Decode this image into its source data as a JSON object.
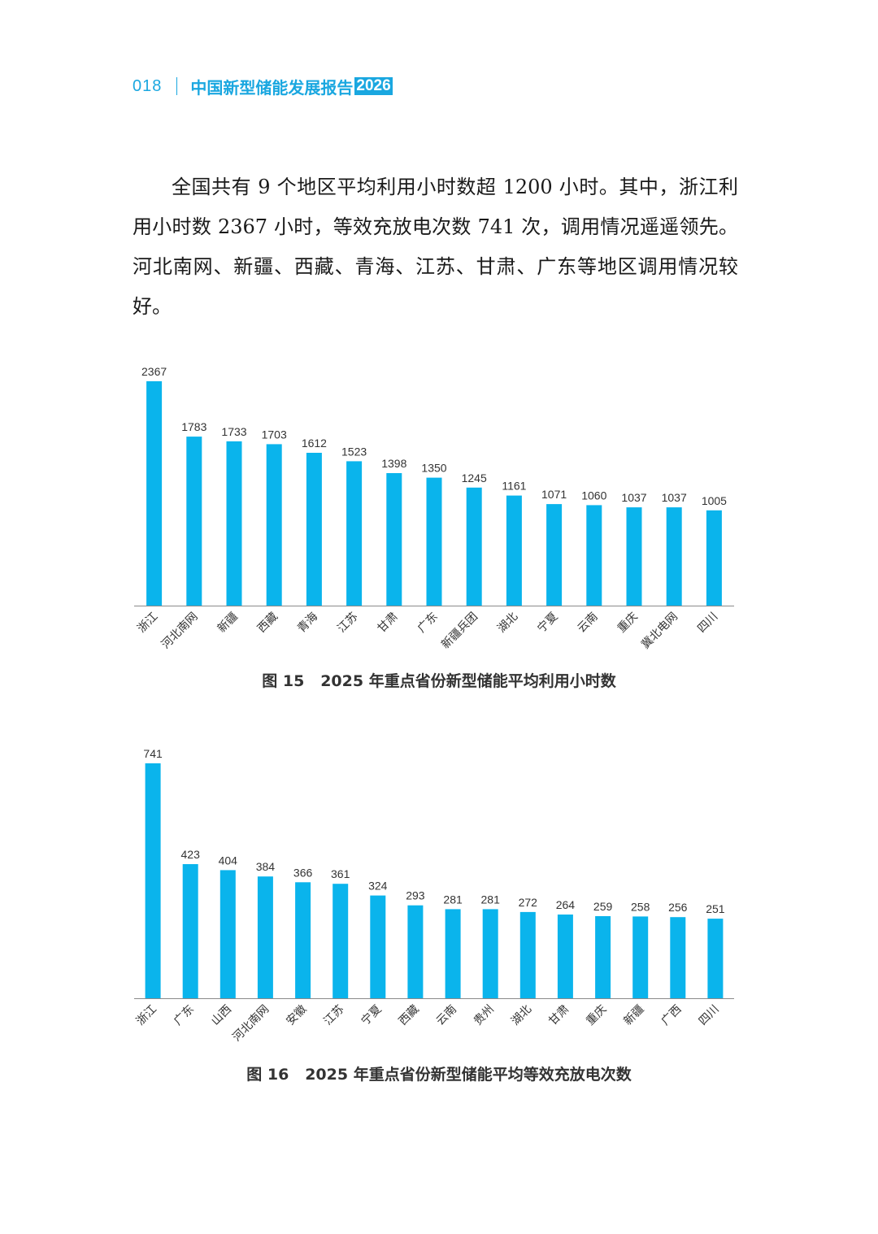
{
  "header": {
    "page_number": "018",
    "title": "中国新型储能发展报告",
    "year": "2026"
  },
  "body_text": "全国共有 9 个地区平均利用小时数超 1200 小时。其中，浙江利用小时数 2367 小时，等效充放电次数 741 次，调用情况遥遥领先。河北南网、新疆、西藏、青海、江苏、甘肃、广东等地区调用情况较好。",
  "figure15": {
    "label": "图 15",
    "caption": "2025 年重点省份新型储能平均利用小时数"
  },
  "figure16": {
    "label": "图 16",
    "caption": "2025 年重点省份新型储能平均等效充放电次数"
  },
  "colors": {
    "accent": "#1aa7e0",
    "bar": "#0ab4ec"
  },
  "chart_data": [
    {
      "type": "bar",
      "categories": [
        "浙江",
        "河北南网",
        "新疆",
        "西藏",
        "青海",
        "江苏",
        "甘肃",
        "广东",
        "新疆兵团",
        "湖北",
        "宁夏",
        "云南",
        "重庆",
        "冀北电网",
        "四川"
      ],
      "values": [
        2367,
        1783,
        1733,
        1703,
        1612,
        1523,
        1398,
        1350,
        1245,
        1161,
        1071,
        1060,
        1037,
        1037,
        1005
      ],
      "ylim": [
        0,
        2367
      ],
      "grid": false
    },
    {
      "type": "bar",
      "categories": [
        "浙江",
        "广东",
        "山西",
        "河北南网",
        "安徽",
        "江苏",
        "宁夏",
        "西藏",
        "云南",
        "贵州",
        "湖北",
        "甘肃",
        "重庆",
        "新疆",
        "广西",
        "四川"
      ],
      "values": [
        741,
        423,
        404,
        384,
        366,
        361,
        324,
        293,
        281,
        281,
        272,
        264,
        259,
        258,
        256,
        251
      ],
      "ylim": [
        0,
        741
      ],
      "grid": false
    }
  ]
}
